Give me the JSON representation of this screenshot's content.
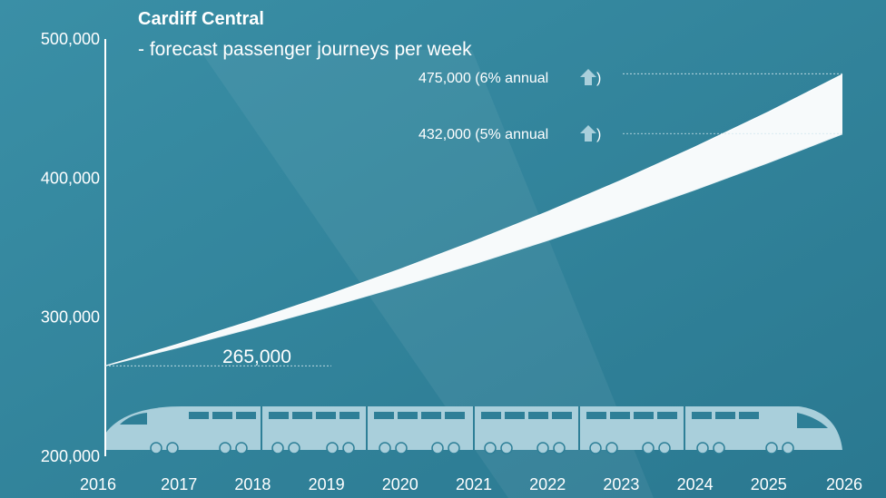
{
  "colors": {
    "background": "#2e7f97",
    "band": "#ffffff",
    "train": "#a9cfdb",
    "train_window": "#2e7f97",
    "arrow": "#a9cfdb"
  },
  "chart_data": {
    "type": "area",
    "title": "Cardiff Central",
    "subtitle": "- forecast passenger journeys per week",
    "xlabel": "",
    "ylabel": "",
    "x": [
      2016,
      2017,
      2018,
      2019,
      2020,
      2021,
      2022,
      2023,
      2024,
      2025,
      2026
    ],
    "x_tick_labels": [
      "2016",
      "2017",
      "2018",
      "2019",
      "2020",
      "2021",
      "2022",
      "2023",
      "2024",
      "2025",
      "2026"
    ],
    "y_tick_labels": [
      "500,000",
      "400,000",
      "300,000",
      "200,000"
    ],
    "y_ticks": [
      500000,
      400000,
      300000,
      200000
    ],
    "xlim": [
      2016,
      2026
    ],
    "ylim": [
      200000,
      500000
    ],
    "series": [
      {
        "values": [
          265000,
          278250,
          292163,
          306771,
          322109,
          338215,
          355125,
          372882,
          391526,
          411102,
          431657
        ]
      },
      {
        "values": [
          265000,
          280900,
          297754,
          315619,
          334556,
          354630,
          375908,
          398463,
          422370,
          447713,
          474575
        ]
      }
    ],
    "annotations": {
      "start": {
        "text": "265,000",
        "year": 2016,
        "value": 265000
      },
      "high": {
        "text_pre": "475,000 (6% annual",
        "text_post": ")",
        "value": 475000
      },
      "low": {
        "text_pre": "432,000 (5% annual",
        "text_post": ")",
        "value": 432000
      }
    },
    "arrow_icon": "up-arrow-icon",
    "decoration_icon": "train-icon",
    "grid": false,
    "legend": "none"
  }
}
